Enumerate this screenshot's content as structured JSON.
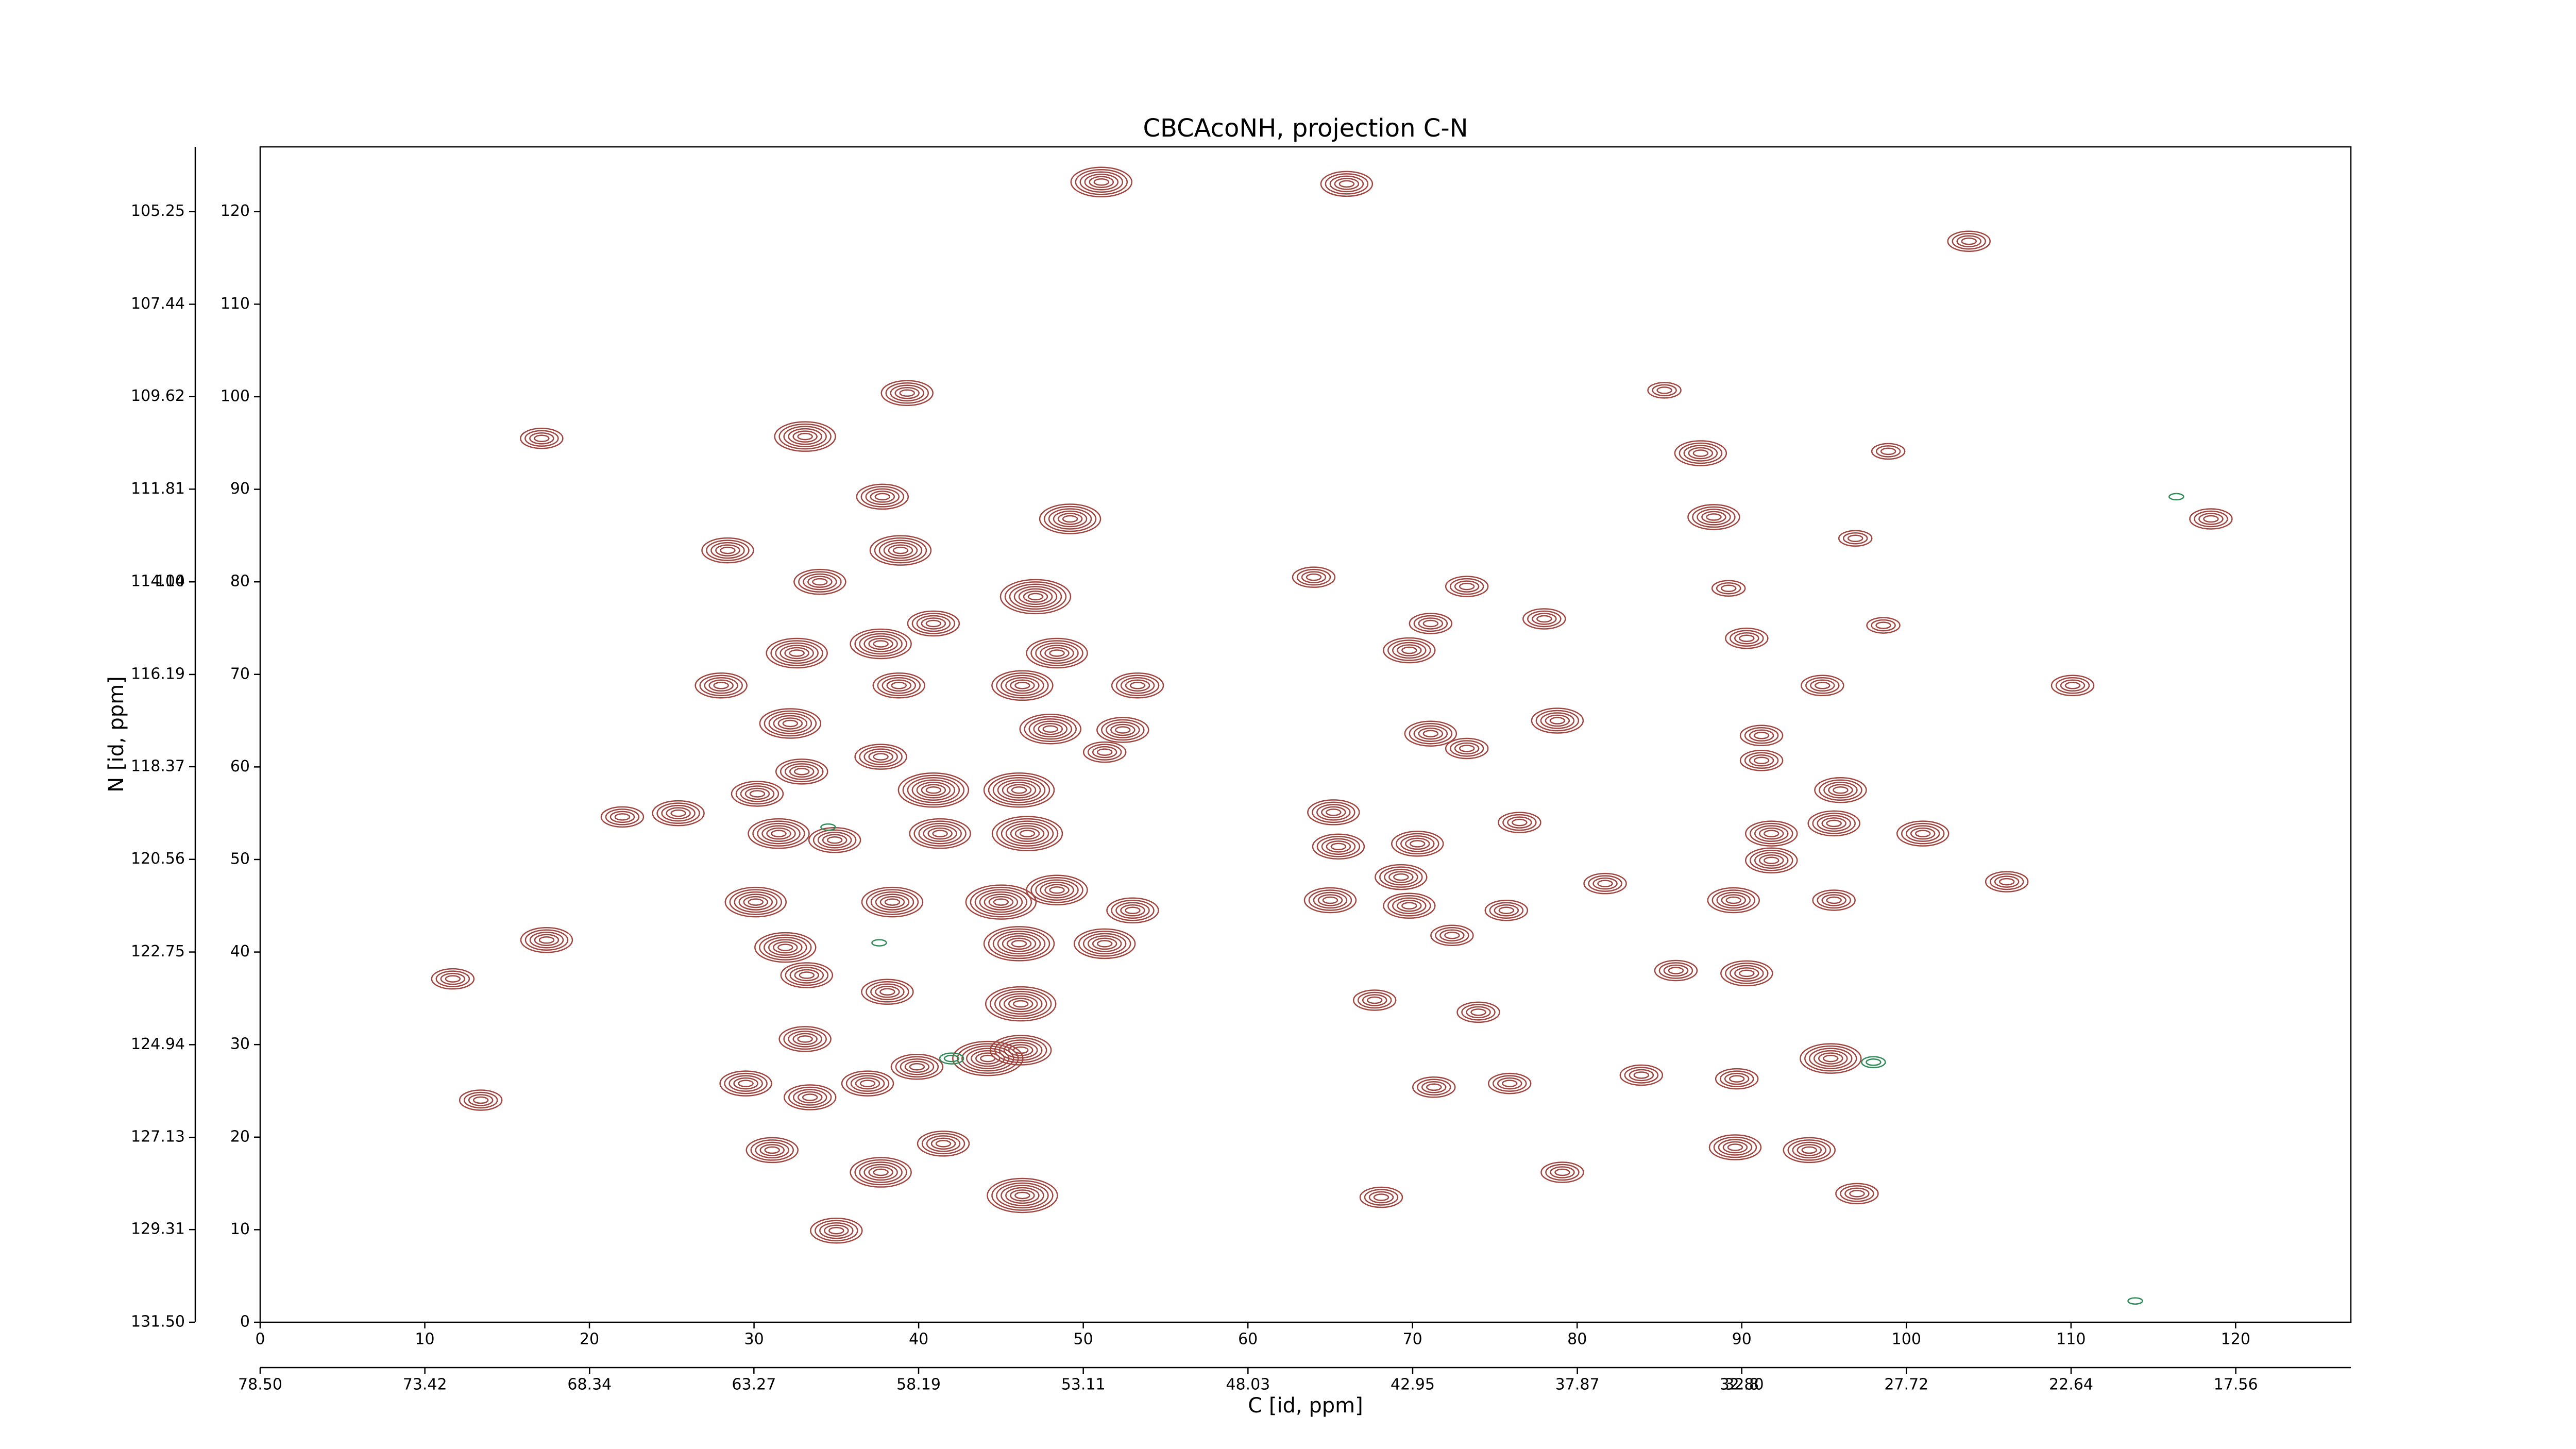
{
  "chart_data": {
    "type": "contour",
    "title": "CBCAcoNH, projection C-N",
    "xlabel": "C [id, ppm]",
    "ylabel": "N [id, ppm]",
    "xlim": [
      0,
      127
    ],
    "ylim": [
      0,
      127
    ],
    "xticks": [
      0,
      10,
      20,
      30,
      40,
      50,
      60,
      70,
      80,
      90,
      100,
      110,
      120
    ],
    "yticks": [
      0,
      10,
      20,
      30,
      40,
      50,
      60,
      70,
      80,
      90,
      100,
      110,
      120
    ],
    "x2lim": [
      78.5,
      14.01
    ],
    "x2ticks": [
      {
        "value": 78.5,
        "label": "78.50"
      },
      73.42,
      68.34,
      63.27,
      58.19,
      53.11,
      48.03,
      42.95,
      37.87,
      32.8,
      {
        "value": 32.8,
        "label": "32.80"
      },
      27.72,
      22.64,
      17.56
    ],
    "y2lim": [
      131.5,
      103.72
    ],
    "y2ticks": [
      {
        "value": 131.5,
        "label": "131.50"
      },
      129.31,
      127.13,
      124.94,
      122.75,
      120.56,
      118.37,
      116.19,
      114.0,
      {
        "value": 114.0,
        "label": "114.00"
      },
      111.81,
      109.62,
      107.44,
      105.25
    ],
    "series": [
      {
        "color": "#a0453f",
        "x": [
          51.1,
          66,
          33.1,
          39.3,
          17.1,
          37.8,
          49.2,
          38.9,
          34,
          28.4,
          47.1,
          48.4,
          32.6,
          37.7,
          40.9,
          28,
          38.8,
          46.3,
          53.3,
          32.2,
          48,
          52.4,
          37.7,
          51.3,
          32.9,
          40.9,
          30.2,
          46.1,
          31.5,
          34.9,
          41.3,
          46.6,
          22,
          25.4,
          30.1,
          38.4,
          45,
          53,
          48.4,
          31.9,
          46.1,
          51.3,
          17.4,
          11.7,
          33.2,
          38.1,
          46.2,
          33.1,
          44.2,
          46.2,
          39.9,
          29.5,
          33.4,
          36.9,
          13.4,
          31.1,
          41.5,
          37.7,
          46.3,
          35,
          64,
          69.8,
          71.1,
          73.3,
          78,
          71.1,
          73.3,
          78.8,
          65.2,
          65.5,
          70.3,
          69.3,
          65,
          69.8,
          72.4,
          75.7,
          76.5,
          67.7,
          74,
          75.9,
          71.3,
          68.1,
          79.1,
          81.7,
          83.9,
          86,
          90.3,
          89.5,
          91.2,
          91.2,
          91.8,
          91.8,
          90.3,
          94.9,
          96,
          95.6,
          95.6,
          89.6,
          94.1,
          89.7,
          95.4,
          97,
          101,
          106.1,
          110.1,
          98.6,
          87.5,
          88.3,
          85.3,
          98.9,
          103.8,
          118.5,
          96.9,
          89.2
        ],
        "values": [
          123.2,
          123,
          95.7,
          100.4,
          95.5,
          89.2,
          86.8,
          83.4,
          80,
          83.4,
          78.4,
          72.3,
          72.3,
          73.3,
          75.5,
          68.8,
          68.8,
          68.8,
          68.8,
          64.7,
          64.1,
          64,
          61.1,
          61.6,
          59.5,
          57.5,
          57.1,
          57.5,
          52.8,
          52.1,
          52.8,
          52.8,
          54.6,
          55,
          45.4,
          45.4,
          45.4,
          44.5,
          46.7,
          40.5,
          40.9,
          40.9,
          41.3,
          37.1,
          37.5,
          35.7,
          34.4,
          30.6,
          28.5,
          29.4,
          27.6,
          25.8,
          24.3,
          25.8,
          24,
          18.6,
          19.3,
          16.2,
          13.7,
          9.9,
          80.5,
          72.6,
          75.5,
          79.5,
          76,
          63.6,
          62,
          65,
          55.1,
          51.4,
          51.7,
          48.1,
          45.6,
          45,
          41.8,
          44.5,
          54,
          34.8,
          33.5,
          25.8,
          25.4,
          13.5,
          16.2,
          47.4,
          26.7,
          38,
          37.7,
          45.6,
          63.4,
          60.7,
          52.8,
          49.9,
          73.9,
          68.8,
          57.5,
          53.9,
          45.6,
          18.9,
          18.6,
          26.3,
          28.5,
          13.9,
          52.8,
          47.6,
          68.8,
          75.3,
          93.9,
          87,
          100.7,
          94.1,
          116.8,
          86.8,
          84.7,
          79.3
        ],
        "intensity": [
          6,
          5,
          6,
          5,
          4,
          5,
          6,
          6,
          5,
          5,
          7,
          6,
          6,
          6,
          5,
          5,
          5,
          6,
          5,
          6,
          6,
          5,
          5,
          4,
          5,
          7,
          5,
          7,
          6,
          5,
          6,
          7,
          4,
          5,
          6,
          6,
          7,
          5,
          6,
          6,
          7,
          6,
          5,
          4,
          5,
          5,
          7,
          5,
          7,
          6,
          5,
          5,
          5,
          5,
          4,
          5,
          5,
          6,
          7,
          5,
          4,
          5,
          4,
          4,
          4,
          5,
          4,
          5,
          5,
          5,
          5,
          5,
          5,
          5,
          4,
          4,
          4,
          4,
          4,
          4,
          4,
          4,
          4,
          4,
          4,
          4,
          5,
          5,
          4,
          4,
          5,
          5,
          4,
          4,
          5,
          5,
          4,
          5,
          5,
          4,
          6,
          4,
          5,
          4,
          4,
          3,
          5,
          5,
          3,
          3,
          4,
          4,
          3,
          3
        ]
      },
      {
        "color": "#2e8b57",
        "x": [
          42,
          98,
          113.9,
          116.4,
          37.6,
          34.5
        ],
        "values": [
          28.5,
          28.1,
          2.3,
          89.2,
          41,
          53.5
        ],
        "intensity": [
          2,
          2,
          1,
          1,
          1,
          1
        ]
      }
    ]
  }
}
